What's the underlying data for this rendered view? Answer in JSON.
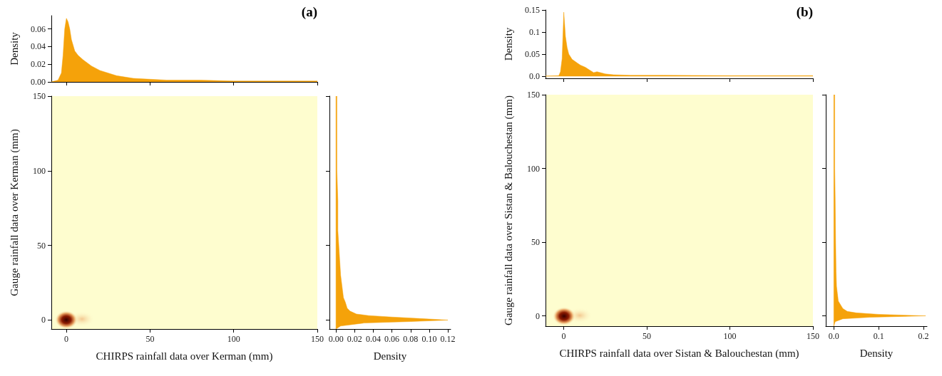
{
  "chart_data": [
    {
      "type": "area",
      "title": "(a)",
      "ylabel": "Density",
      "x": [
        -9,
        -5,
        -3,
        -2,
        -1,
        0,
        1,
        2,
        3,
        5,
        7,
        10,
        15,
        20,
        30,
        40,
        60,
        80,
        100,
        150
      ],
      "values": [
        0,
        0.002,
        0.01,
        0.03,
        0.06,
        0.072,
        0.068,
        0.06,
        0.048,
        0.035,
        0.03,
        0.025,
        0.018,
        0.013,
        0.007,
        0.004,
        0.002,
        0.002,
        0.001,
        0.001
      ],
      "color": "#f5a20a",
      "xlim": [
        -9,
        150
      ],
      "ylim": [
        0,
        0.075
      ],
      "xticks": [
        {
          "value": 0,
          "label": null
        },
        {
          "value": 50,
          "label": null
        },
        {
          "value": 100,
          "label": null
        },
        {
          "value": 150,
          "label": null
        }
      ],
      "yticks": [
        {
          "value": 0,
          "label": "0.00"
        },
        {
          "value": 0.02,
          "label": "0.02"
        },
        {
          "value": 0.04,
          "label": "0.04"
        },
        {
          "value": 0.06,
          "label": "0.06"
        }
      ],
      "tick_labels": "y",
      "grid": false
    },
    {
      "type": "heatmap",
      "xlabel": "CHIRPS rainfall data over Kerman (mm)",
      "ylabel": "Gauge rainfall data over Kerman (mm)",
      "xlim": [
        -9,
        150
      ],
      "ylim": [
        -6,
        150
      ],
      "xticks": [
        0,
        50,
        100,
        150
      ],
      "yticks": [
        0,
        50,
        100,
        150
      ]
    },
    {
      "type": "area",
      "orientation": "horizontal",
      "xlabel": "Density",
      "x": [
        -6,
        -4,
        -2,
        -1,
        0,
        1,
        2,
        3,
        4,
        6,
        8,
        12,
        15,
        20,
        25,
        30,
        40,
        60,
        80,
        100,
        150
      ],
      "values": [
        0,
        0.005,
        0.03,
        0.08,
        0.12,
        0.09,
        0.06,
        0.035,
        0.022,
        0.015,
        0.012,
        0.01,
        0.008,
        0.007,
        0.006,
        0.005,
        0.004,
        0.002,
        0.002,
        0.001,
        0.001
      ],
      "color": "#f5a20a",
      "xlim": [
        -0.007,
        0.123
      ],
      "ylim": [
        -6,
        150
      ],
      "xticks": [
        {
          "value": 0,
          "label": "0.00"
        },
        {
          "value": 0.02,
          "label": "0.02"
        },
        {
          "value": 0.04,
          "label": "0.04"
        },
        {
          "value": 0.06,
          "label": "0.06"
        },
        {
          "value": 0.08,
          "label": "0.08"
        },
        {
          "value": 0.1,
          "label": "0.10"
        },
        {
          "value": 0.12,
          "label": "0.12"
        }
      ],
      "yticks": [
        {
          "value": 0,
          "label": null
        },
        {
          "value": 50,
          "label": null
        },
        {
          "value": 100,
          "label": null
        },
        {
          "value": 150,
          "label": null
        }
      ],
      "tick_labels": "x",
      "grid": false
    },
    {
      "type": "area",
      "title": "(b)",
      "ylabel": "Density",
      "x": [
        -11,
        -3,
        -2,
        -1,
        0,
        1,
        2,
        3,
        5,
        8,
        10,
        13,
        15,
        18,
        20,
        25,
        30,
        40,
        60,
        100,
        150
      ],
      "values": [
        0,
        0.001,
        0.01,
        0.04,
        0.145,
        0.09,
        0.065,
        0.05,
        0.038,
        0.03,
        0.025,
        0.02,
        0.015,
        0.008,
        0.01,
        0.005,
        0.003,
        0.002,
        0.002,
        0.001,
        0.001
      ],
      "color": "#f5a20a",
      "xlim": [
        -11,
        150
      ],
      "ylim": [
        -0.005,
        0.15
      ],
      "xticks": [
        {
          "value": 0,
          "label": null
        },
        {
          "value": 50,
          "label": null
        },
        {
          "value": 100,
          "label": null
        },
        {
          "value": 150,
          "label": null
        }
      ],
      "yticks": [
        {
          "value": 0,
          "label": "0.0"
        },
        {
          "value": 0.05,
          "label": "0.05"
        },
        {
          "value": 0.1,
          "label": "0.1"
        },
        {
          "value": 0.15,
          "label": "0.15"
        }
      ],
      "tick_labels": "y",
      "grid": false
    },
    {
      "type": "heatmap",
      "xlabel": "CHIRPS rainfall data over Sistan & Balouchestan (mm)",
      "ylabel": "Gauge rainfall data over Sistan & Balouchestan (mm)",
      "xlim": [
        -11,
        150
      ],
      "ylim": [
        -7,
        150
      ],
      "xticks": [
        0,
        50,
        100,
        150
      ],
      "yticks": [
        0,
        50,
        100,
        150
      ]
    },
    {
      "type": "area",
      "orientation": "horizontal",
      "xlabel": "Density",
      "x": [
        -7,
        -4,
        -2,
        -1,
        0,
        1,
        2,
        3,
        5,
        8,
        10,
        15,
        20,
        30,
        50,
        80,
        100,
        150
      ],
      "values": [
        0,
        0.003,
        0.02,
        0.08,
        0.205,
        0.1,
        0.05,
        0.03,
        0.02,
        0.014,
        0.01,
        0.008,
        0.006,
        0.005,
        0.004,
        0.003,
        0.002,
        0.002
      ],
      "color": "#f5a20a",
      "xlim": [
        -0.018,
        0.208
      ],
      "ylim": [
        -7,
        150
      ],
      "xticks": [
        {
          "value": 0,
          "label": "0.0"
        },
        {
          "value": 0.1,
          "label": "0.1"
        },
        {
          "value": 0.2,
          "label": "0.2"
        }
      ],
      "yticks": [
        {
          "value": 0,
          "label": null
        },
        {
          "value": 50,
          "label": null
        },
        {
          "value": 100,
          "label": null
        },
        {
          "value": 150,
          "label": null
        }
      ],
      "tick_labels": "x",
      "grid": false
    }
  ]
}
